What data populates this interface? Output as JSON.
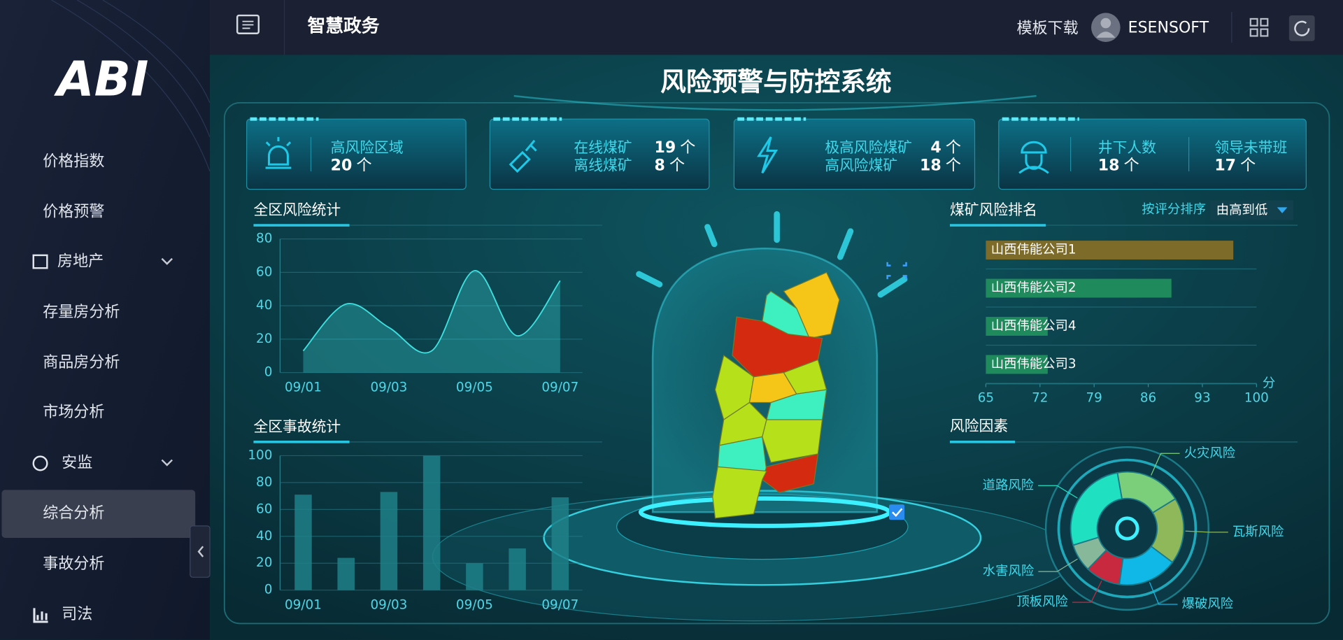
{
  "sidebar": {
    "logo": "ABI",
    "items": [
      "价格指数",
      "价格预警",
      "房地产",
      "存量房分析",
      "商品房分析",
      "市场分析",
      "安监",
      "综合分析",
      "事故分析",
      "司法"
    ]
  },
  "header": {
    "title": "智慧政务",
    "download": "模板下载",
    "user": "ESENSOFT"
  },
  "dashboard": {
    "title": "风险预警与防控系统",
    "kpis": [
      {
        "items": [
          {
            "label": "高风险区域",
            "value": 20,
            "unit": "个"
          }
        ]
      },
      {
        "items": [
          {
            "label": "在线煤矿",
            "value": 19,
            "unit": "个"
          },
          {
            "label": "离线煤矿",
            "value": 8,
            "unit": "个"
          }
        ]
      },
      {
        "items": [
          {
            "label": "极高风险煤矿",
            "value": 4,
            "unit": "个"
          },
          {
            "label": "高风险煤矿",
            "value": 18,
            "unit": "个"
          }
        ]
      },
      {
        "items": [
          {
            "label": "井下人数",
            "value": 18,
            "unit": "个"
          },
          {
            "label": "领导未带班",
            "value": 17,
            "unit": "个"
          }
        ]
      }
    ],
    "risk_stats": {
      "type": "area",
      "title": "全区风险统计",
      "categories": [
        "09/01",
        null,
        "09/03",
        null,
        "09/05",
        null,
        "09/07"
      ],
      "values": [
        13,
        41,
        27,
        13,
        61,
        22,
        55
      ],
      "ylim": [
        0,
        80
      ],
      "yticks": [
        0,
        20,
        40,
        60,
        80
      ],
      "color": "#3fe0e0",
      "grid": true
    },
    "accident_stats": {
      "type": "bar",
      "title": "全区事故统计",
      "categories": [
        "09/01",
        null,
        "09/03",
        null,
        "09/05",
        null,
        "09/07"
      ],
      "values": [
        71,
        24,
        73,
        100,
        20,
        31,
        69
      ],
      "ylim": [
        0,
        100
      ],
      "yticks": [
        0,
        20,
        40,
        60,
        80,
        100
      ],
      "color": "#1f8088",
      "grid": true
    },
    "mine_ranking": {
      "type": "hbar",
      "title": "煤矿风险排名",
      "sort_label": "按评分排序",
      "sort_value": "由高到低",
      "categories": [
        "山西伟能公司1",
        "山西伟能公司2",
        "山西伟能公司4",
        "山西伟能公司3"
      ],
      "values": [
        97,
        89,
        73,
        73
      ],
      "colors": [
        "#7d6b2a",
        "#1f8a5c",
        "#1f8a5c",
        "#1f8a5c"
      ],
      "xlim": [
        65,
        100
      ],
      "xticks": [
        65,
        72,
        79,
        86,
        93,
        100
      ],
      "unit": "分"
    },
    "risk_factors": {
      "type": "donut",
      "title": "风险因素",
      "categories": [
        "火灾风险",
        "瓦斯风险",
        "爆破风险",
        "顶板风险",
        "水害风险",
        "道路风险"
      ],
      "values": [
        19,
        19,
        17,
        10,
        8,
        27
      ],
      "colors": [
        "#7ccf7a",
        "#8fb85a",
        "#10b8e8",
        "#c8293f",
        "#88b89a",
        "#1fe0c0"
      ]
    }
  }
}
